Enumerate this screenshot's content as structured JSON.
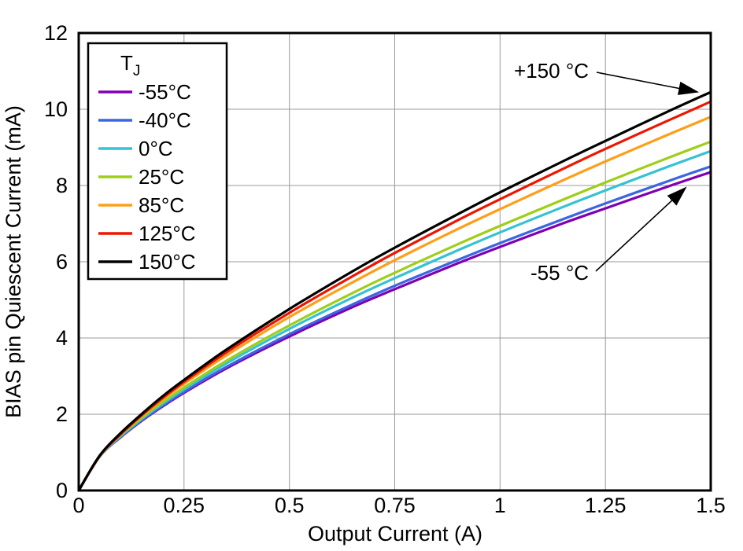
{
  "page": {
    "background": "#ffffff"
  },
  "chart_data": {
    "type": "line",
    "title": "",
    "xlabel": "Output Current (A)",
    "ylabel": "BIAS pin Quiescent Current (mA)",
    "xlim": [
      0,
      1.5
    ],
    "ylim": [
      0,
      12
    ],
    "xticks": [
      0,
      0.25,
      0.5,
      0.75,
      1,
      1.25,
      1.5
    ],
    "xtick_labels": [
      "0",
      "0.25",
      "0.5",
      "0.75",
      "1",
      "1.25",
      "1.5"
    ],
    "yticks": [
      0,
      2,
      4,
      6,
      8,
      10,
      12
    ],
    "ytick_labels": [
      "0",
      "2",
      "4",
      "6",
      "8",
      "10",
      "12"
    ],
    "grid": true,
    "grid_color": "#999999",
    "axis_color": "#000000",
    "legend": {
      "title": "T",
      "title_sub": "J",
      "position": "top-left"
    },
    "x": [
      0,
      0.05,
      0.1,
      0.15,
      0.2,
      0.25,
      0.35,
      0.5,
      0.65,
      0.75,
      0.9,
      1,
      1.15,
      1.25,
      1.4,
      1.5
    ],
    "series": [
      {
        "name": "-55°C",
        "color": "#8000B4",
        "values": [
          0,
          0.89,
          1.4,
          1.83,
          2.21,
          2.56,
          3.2,
          4.04,
          4.81,
          5.28,
          5.96,
          6.39,
          7.01,
          7.4,
          7.98,
          8.35
        ]
      },
      {
        "name": "-40°C",
        "color": "#3A66E0",
        "values": [
          0,
          0.89,
          1.41,
          1.85,
          2.23,
          2.59,
          3.24,
          4.1,
          4.88,
          5.37,
          6.05,
          6.49,
          7.12,
          7.53,
          8.12,
          8.5
        ]
      },
      {
        "name": "0°C",
        "color": "#35C2D2",
        "values": [
          0,
          0.89,
          1.43,
          1.88,
          2.28,
          2.65,
          3.33,
          4.24,
          5.06,
          5.57,
          6.3,
          6.77,
          7.44,
          7.87,
          8.5,
          8.9
        ]
      },
      {
        "name": "25°C",
        "color": "#9FCE19",
        "values": [
          0,
          0.9,
          1.45,
          1.91,
          2.32,
          2.7,
          3.4,
          4.33,
          5.18,
          5.71,
          6.46,
          6.94,
          7.63,
          8.08,
          8.73,
          9.15
        ]
      },
      {
        "name": "85°C",
        "color": "#FF9E18",
        "values": [
          0,
          0.91,
          1.48,
          1.96,
          2.4,
          2.8,
          3.54,
          4.55,
          5.46,
          6.04,
          6.86,
          7.38,
          8.14,
          8.63,
          9.34,
          9.8
        ]
      },
      {
        "name": "125°C",
        "color": "#EB1700",
        "values": [
          0,
          0.91,
          1.48,
          1.98,
          2.43,
          2.85,
          3.62,
          4.66,
          5.62,
          6.23,
          7.09,
          7.64,
          8.44,
          8.96,
          9.71,
          10.2
        ]
      },
      {
        "name": "150°C",
        "color": "#000000",
        "values": [
          0,
          0.92,
          1.51,
          2.01,
          2.48,
          2.9,
          3.69,
          4.76,
          5.75,
          6.37,
          7.25,
          7.82,
          8.64,
          9.17,
          9.95,
          10.45
        ]
      }
    ],
    "annotations": [
      {
        "text": "+150 °C",
        "points_to": "150°C"
      },
      {
        "text": "-55 °C",
        "points_to": "-55°C"
      }
    ]
  }
}
